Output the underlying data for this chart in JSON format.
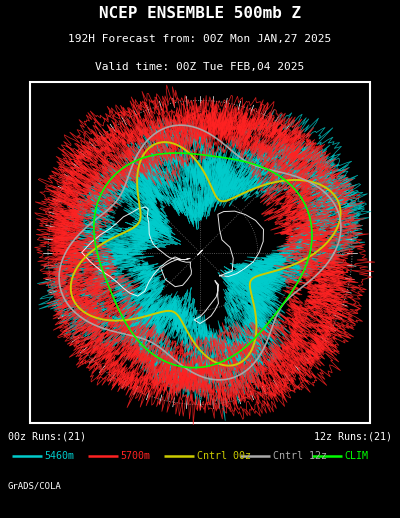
{
  "title_line1": "NCEP ENSEMBLE 500mb Z",
  "title_line2": "192H Forecast from: 00Z Mon JAN,27 2025",
  "title_line3": "Valid time: 00Z Tue FEB,04 2025",
  "legend_items": [
    {
      "color": "#00CCCC",
      "label": "5460m",
      "linestyle": "-"
    },
    {
      "color": "#FF2222",
      "label": "5700m",
      "linestyle": "-"
    },
    {
      "color": "#CCCC00",
      "label": "Cntrl 00z",
      "linestyle": "-"
    },
    {
      "color": "#AAAAAA",
      "label": "Cntrl 12z",
      "linestyle": "-"
    },
    {
      "color": "#00FF00",
      "label": "CLIM",
      "linestyle": "-"
    }
  ],
  "left_label": "00z Runs:(21)",
  "right_label": "12z Runs:(21)",
  "footer_label": "GrADS/COLA",
  "bg_color": "#000000",
  "title_color": "#FFFFFF",
  "figsize": [
    4.0,
    5.18
  ],
  "dpi": 100,
  "cyan_color": "#00CCCC",
  "red_color": "#FF2222",
  "yellow_color": "#CCCC00",
  "gray_color": "#AAAAAA",
  "green_color": "#00FF00"
}
